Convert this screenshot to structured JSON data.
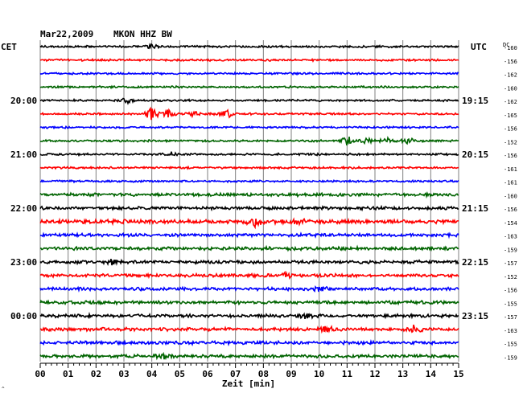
{
  "header": {
    "date": "Mar22,2009",
    "station": "MKON HHZ BW",
    "left_zone": "CET",
    "right_zone": "UTC",
    "dc_label": "DC"
  },
  "chart_data": {
    "type": "line",
    "title": "Mar22,2009   MKON HHZ BW",
    "xlabel": "Zeit [min]",
    "xlim": [
      0,
      15
    ],
    "x_ticks": [
      "00",
      "01",
      "02",
      "03",
      "04",
      "05",
      "06",
      "07",
      "08",
      "09",
      "10",
      "11",
      "12",
      "13",
      "14",
      "15"
    ],
    "grid": "vertical lines every minute",
    "series_colors": [
      "#000000",
      "#ff0000",
      "#0000ff",
      "#006400"
    ],
    "trace_count": 24,
    "left_time_labels": [
      {
        "trace": 4,
        "label": "20:00"
      },
      {
        "trace": 8,
        "label": "21:00"
      },
      {
        "trace": 12,
        "label": "22:00"
      },
      {
        "trace": 16,
        "label": "23:00"
      },
      {
        "trace": 20,
        "label": "00:00"
      }
    ],
    "right_time_labels": [
      {
        "trace": 4,
        "label": "19:15"
      },
      {
        "trace": 8,
        "label": "20:15"
      },
      {
        "trace": 12,
        "label": "21:15"
      },
      {
        "trace": 16,
        "label": "22:15"
      },
      {
        "trace": 20,
        "label": "23:15"
      }
    ],
    "dc_offsets": [
      "-160",
      "-156",
      "-162",
      "-160",
      "-162",
      "-165",
      "-156",
      "-152",
      "-156",
      "-161",
      "-161",
      "-160",
      "-156",
      "-154",
      "-163",
      "-159",
      "-157",
      "-152",
      "-156",
      "-155",
      "-157",
      "-163",
      "-155",
      "-159"
    ],
    "amplitude_levels": [
      "low",
      "low",
      "low",
      "low",
      "low",
      "low",
      "low",
      "low",
      "low",
      "low",
      "low",
      "medium",
      "medium",
      "high",
      "medium",
      "medium",
      "medium",
      "medium",
      "medium",
      "medium",
      "medium",
      "medium",
      "medium",
      "medium"
    ],
    "events": [
      {
        "trace": 0,
        "minute": 4.0,
        "strength": 1.2
      },
      {
        "trace": 4,
        "minute": 3.1,
        "strength": 1.3
      },
      {
        "trace": 5,
        "minute": 4.0,
        "strength": 3.5
      },
      {
        "trace": 5,
        "minute": 4.6,
        "strength": 2.2
      },
      {
        "trace": 5,
        "minute": 5.5,
        "strength": 1.5
      },
      {
        "trace": 5,
        "minute": 6.7,
        "strength": 1.8
      },
      {
        "trace": 7,
        "minute": 11.0,
        "strength": 2.5
      },
      {
        "trace": 7,
        "minute": 11.7,
        "strength": 1.6
      },
      {
        "trace": 7,
        "minute": 12.4,
        "strength": 1.4
      },
      {
        "trace": 7,
        "minute": 13.2,
        "strength": 1.5
      },
      {
        "trace": 8,
        "minute": 4.7,
        "strength": 1.2
      },
      {
        "trace": 13,
        "minute": 7.7,
        "strength": 2.6
      },
      {
        "trace": 13,
        "minute": 9.2,
        "strength": 1.3
      },
      {
        "trace": 16,
        "minute": 2.6,
        "strength": 1.4
      },
      {
        "trace": 17,
        "minute": 8.8,
        "strength": 1.4
      },
      {
        "trace": 18,
        "minute": 10.0,
        "strength": 1.3
      },
      {
        "trace": 20,
        "minute": 9.5,
        "strength": 1.3
      },
      {
        "trace": 21,
        "minute": 10.3,
        "strength": 1.5
      },
      {
        "trace": 21,
        "minute": 13.4,
        "strength": 1.9
      },
      {
        "trace": 23,
        "minute": 4.4,
        "strength": 1.3
      }
    ]
  }
}
